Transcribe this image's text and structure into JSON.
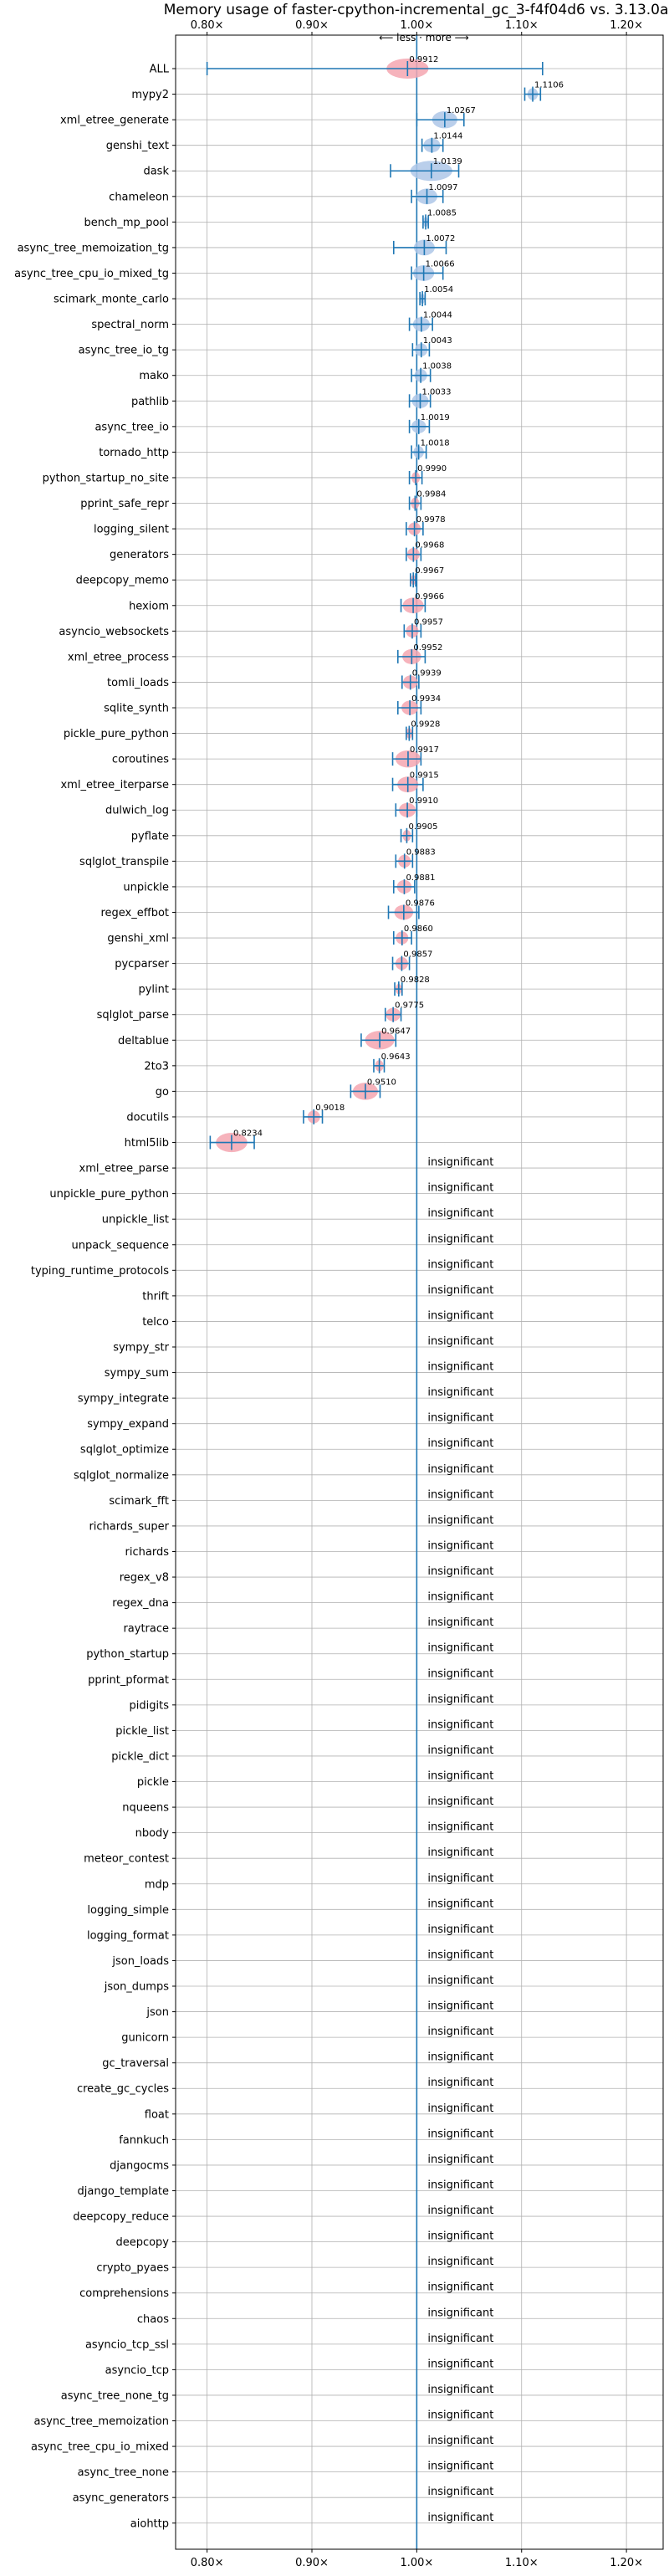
{
  "chart_data": {
    "type": "violin",
    "title": "Memory usage of faster-cpython-incremental_gc_3-f4f04d6 vs. 3.13.0a5",
    "direction_label": "⟵ less · more ⟶",
    "x_ticks": [
      0.8,
      0.9,
      1.0,
      1.1,
      1.2
    ],
    "x_tick_labels": [
      "0.80×",
      "0.90×",
      "1.00×",
      "1.10×",
      "1.20×"
    ],
    "xlim": [
      0.77,
      1.235
    ],
    "reference_x": 1.0,
    "grid": true,
    "insignificant_text": "insignificant",
    "colors": {
      "increase": "#aec7e8",
      "decrease": "#f4a6b0",
      "line": "#1f77b4",
      "grid": "#b0b0b0"
    },
    "benchmarks": [
      {
        "name": "ALL",
        "value": 0.9912,
        "label": "0.9912",
        "lo": 0.8,
        "hi": 1.12,
        "spread": 0.02
      },
      {
        "name": "mypy2",
        "value": 1.1106,
        "label": "1.1106",
        "lo": 1.103,
        "hi": 1.118,
        "spread": 0.005
      },
      {
        "name": "xml_etree_generate",
        "value": 1.0267,
        "label": "1.0267",
        "lo": 1.0,
        "hi": 1.045,
        "spread": 0.012
      },
      {
        "name": "genshi_text",
        "value": 1.0144,
        "label": "1.0144",
        "lo": 1.005,
        "hi": 1.025,
        "spread": 0.008
      },
      {
        "name": "dask",
        "value": 1.0139,
        "label": "1.0139",
        "lo": 0.975,
        "hi": 1.04,
        "spread": 0.02
      },
      {
        "name": "chameleon",
        "value": 1.0097,
        "label": "1.0097",
        "lo": 0.995,
        "hi": 1.025,
        "spread": 0.01
      },
      {
        "name": "bench_mp_pool",
        "value": 1.0085,
        "label": "1.0085",
        "lo": 1.006,
        "hi": 1.011,
        "spread": 0.002
      },
      {
        "name": "async_tree_memoization_tg",
        "value": 1.0072,
        "label": "1.0072",
        "lo": 0.978,
        "hi": 1.028,
        "spread": 0.01
      },
      {
        "name": "async_tree_cpu_io_mixed_tg",
        "value": 1.0066,
        "label": "1.0066",
        "lo": 0.995,
        "hi": 1.025,
        "spread": 0.01
      },
      {
        "name": "scimark_monte_carlo",
        "value": 1.0054,
        "label": "1.0054",
        "lo": 1.003,
        "hi": 1.008,
        "spread": 0.002
      },
      {
        "name": "spectral_norm",
        "value": 1.0044,
        "label": "1.0044",
        "lo": 0.993,
        "hi": 1.015,
        "spread": 0.008
      },
      {
        "name": "async_tree_io_tg",
        "value": 1.0043,
        "label": "1.0043",
        "lo": 0.996,
        "hi": 1.012,
        "spread": 0.006
      },
      {
        "name": "mako",
        "value": 1.0038,
        "label": "1.0038",
        "lo": 0.995,
        "hi": 1.013,
        "spread": 0.006
      },
      {
        "name": "pathlib",
        "value": 1.0033,
        "label": "1.0033",
        "lo": 0.993,
        "hi": 1.013,
        "spread": 0.008
      },
      {
        "name": "async_tree_io",
        "value": 1.0019,
        "label": "1.0019",
        "lo": 0.993,
        "hi": 1.012,
        "spread": 0.007
      },
      {
        "name": "tornado_http",
        "value": 1.0018,
        "label": "1.0018",
        "lo": 0.995,
        "hi": 1.009,
        "spread": 0.005
      },
      {
        "name": "python_startup_no_site",
        "value": 0.999,
        "label": "0.9990",
        "lo": 0.993,
        "hi": 1.005,
        "spread": 0.004
      },
      {
        "name": "pprint_safe_repr",
        "value": 0.9984,
        "label": "0.9984",
        "lo": 0.993,
        "hi": 1.004,
        "spread": 0.004
      },
      {
        "name": "logging_silent",
        "value": 0.9978,
        "label": "0.9978",
        "lo": 0.99,
        "hi": 1.006,
        "spread": 0.006
      },
      {
        "name": "generators",
        "value": 0.9968,
        "label": "0.9968",
        "lo": 0.99,
        "hi": 1.004,
        "spread": 0.006
      },
      {
        "name": "deepcopy_memo",
        "value": 0.9967,
        "label": "0.9967",
        "lo": 0.994,
        "hi": 0.999,
        "spread": 0.002
      },
      {
        "name": "hexiom",
        "value": 0.9966,
        "label": "0.9966",
        "lo": 0.985,
        "hi": 1.008,
        "spread": 0.01
      },
      {
        "name": "asyncio_websockets",
        "value": 0.9957,
        "label": "0.9957",
        "lo": 0.988,
        "hi": 1.004,
        "spread": 0.006
      },
      {
        "name": "xml_etree_process",
        "value": 0.9952,
        "label": "0.9952",
        "lo": 0.982,
        "hi": 1.008,
        "spread": 0.009
      },
      {
        "name": "tomli_loads",
        "value": 0.9939,
        "label": "0.9939",
        "lo": 0.986,
        "hi": 1.002,
        "spread": 0.007
      },
      {
        "name": "sqlite_synth",
        "value": 0.9934,
        "label": "0.9934",
        "lo": 0.982,
        "hi": 1.004,
        "spread": 0.008
      },
      {
        "name": "pickle_pure_python",
        "value": 0.9928,
        "label": "0.9928",
        "lo": 0.99,
        "hi": 0.996,
        "spread": 0.003
      },
      {
        "name": "coroutines",
        "value": 0.9917,
        "label": "0.9917",
        "lo": 0.977,
        "hi": 1.004,
        "spread": 0.012
      },
      {
        "name": "xml_etree_iterparse",
        "value": 0.9915,
        "label": "0.9915",
        "lo": 0.977,
        "hi": 1.006,
        "spread": 0.01
      },
      {
        "name": "dulwich_log",
        "value": 0.991,
        "label": "0.9910",
        "lo": 0.98,
        "hi": 1.0,
        "spread": 0.008
      },
      {
        "name": "pyflate",
        "value": 0.9905,
        "label": "0.9905",
        "lo": 0.985,
        "hi": 0.996,
        "spread": 0.004
      },
      {
        "name": "sqlglot_transpile",
        "value": 0.9883,
        "label": "0.9883",
        "lo": 0.98,
        "hi": 0.996,
        "spread": 0.006
      },
      {
        "name": "unpickle",
        "value": 0.9881,
        "label": "0.9881",
        "lo": 0.978,
        "hi": 0.998,
        "spread": 0.007
      },
      {
        "name": "regex_effbot",
        "value": 0.9876,
        "label": "0.9876",
        "lo": 0.973,
        "hi": 1.002,
        "spread": 0.009
      },
      {
        "name": "genshi_xml",
        "value": 0.986,
        "label": "0.9860",
        "lo": 0.978,
        "hi": 0.995,
        "spread": 0.006
      },
      {
        "name": "pycparser",
        "value": 0.9857,
        "label": "0.9857",
        "lo": 0.977,
        "hi": 0.993,
        "spread": 0.006
      },
      {
        "name": "pylint",
        "value": 0.9828,
        "label": "0.9828",
        "lo": 0.979,
        "hi": 0.986,
        "spread": 0.003
      },
      {
        "name": "sqlglot_parse",
        "value": 0.9775,
        "label": "0.9775",
        "lo": 0.97,
        "hi": 0.985,
        "spread": 0.007
      },
      {
        "name": "deltablue",
        "value": 0.9647,
        "label": "0.9647",
        "lo": 0.947,
        "hi": 0.98,
        "spread": 0.014
      },
      {
        "name": "2to3",
        "value": 0.9643,
        "label": "0.9643",
        "lo": 0.959,
        "hi": 0.969,
        "spread": 0.004
      },
      {
        "name": "go",
        "value": 0.951,
        "label": "0.9510",
        "lo": 0.937,
        "hi": 0.965,
        "spread": 0.012
      },
      {
        "name": "docutils",
        "value": 0.9018,
        "label": "0.9018",
        "lo": 0.892,
        "hi": 0.91,
        "spread": 0.006
      },
      {
        "name": "html5lib",
        "value": 0.8234,
        "label": "0.8234",
        "lo": 0.803,
        "hi": 0.845,
        "spread": 0.015
      },
      {
        "name": "xml_etree_parse",
        "insignificant": true
      },
      {
        "name": "unpickle_pure_python",
        "insignificant": true
      },
      {
        "name": "unpickle_list",
        "insignificant": true
      },
      {
        "name": "unpack_sequence",
        "insignificant": true
      },
      {
        "name": "typing_runtime_protocols",
        "insignificant": true
      },
      {
        "name": "thrift",
        "insignificant": true
      },
      {
        "name": "telco",
        "insignificant": true
      },
      {
        "name": "sympy_str",
        "insignificant": true
      },
      {
        "name": "sympy_sum",
        "insignificant": true
      },
      {
        "name": "sympy_integrate",
        "insignificant": true
      },
      {
        "name": "sympy_expand",
        "insignificant": true
      },
      {
        "name": "sqlglot_optimize",
        "insignificant": true
      },
      {
        "name": "sqlglot_normalize",
        "insignificant": true
      },
      {
        "name": "scimark_fft",
        "insignificant": true
      },
      {
        "name": "richards_super",
        "insignificant": true
      },
      {
        "name": "richards",
        "insignificant": true
      },
      {
        "name": "regex_v8",
        "insignificant": true
      },
      {
        "name": "regex_dna",
        "insignificant": true
      },
      {
        "name": "raytrace",
        "insignificant": true
      },
      {
        "name": "python_startup",
        "insignificant": true
      },
      {
        "name": "pprint_pformat",
        "insignificant": true
      },
      {
        "name": "pidigits",
        "insignificant": true
      },
      {
        "name": "pickle_list",
        "insignificant": true
      },
      {
        "name": "pickle_dict",
        "insignificant": true
      },
      {
        "name": "pickle",
        "insignificant": true
      },
      {
        "name": "nqueens",
        "insignificant": true
      },
      {
        "name": "nbody",
        "insignificant": true
      },
      {
        "name": "meteor_contest",
        "insignificant": true
      },
      {
        "name": "mdp",
        "insignificant": true
      },
      {
        "name": "logging_simple",
        "insignificant": true
      },
      {
        "name": "logging_format",
        "insignificant": true
      },
      {
        "name": "json_loads",
        "insignificant": true
      },
      {
        "name": "json_dumps",
        "insignificant": true
      },
      {
        "name": "json",
        "insignificant": true
      },
      {
        "name": "gunicorn",
        "insignificant": true
      },
      {
        "name": "gc_traversal",
        "insignificant": true
      },
      {
        "name": "create_gc_cycles",
        "insignificant": true
      },
      {
        "name": "float",
        "insignificant": true
      },
      {
        "name": "fannkuch",
        "insignificant": true
      },
      {
        "name": "djangocms",
        "insignificant": true
      },
      {
        "name": "django_template",
        "insignificant": true
      },
      {
        "name": "deepcopy_reduce",
        "insignificant": true
      },
      {
        "name": "deepcopy",
        "insignificant": true
      },
      {
        "name": "crypto_pyaes",
        "insignificant": true
      },
      {
        "name": "comprehensions",
        "insignificant": true
      },
      {
        "name": "chaos",
        "insignificant": true
      },
      {
        "name": "asyncio_tcp_ssl",
        "insignificant": true
      },
      {
        "name": "asyncio_tcp",
        "insignificant": true
      },
      {
        "name": "async_tree_none_tg",
        "insignificant": true
      },
      {
        "name": "async_tree_memoization",
        "insignificant": true
      },
      {
        "name": "async_tree_cpu_io_mixed",
        "insignificant": true
      },
      {
        "name": "async_tree_none",
        "insignificant": true
      },
      {
        "name": "async_generators",
        "insignificant": true
      },
      {
        "name": "aiohttp",
        "insignificant": true
      }
    ]
  }
}
